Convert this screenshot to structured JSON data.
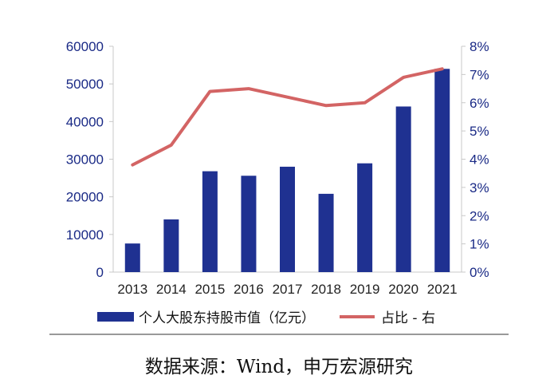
{
  "chart_data": {
    "type": "bar+line",
    "categories": [
      "2013",
      "2014",
      "2015",
      "2016",
      "2017",
      "2018",
      "2019",
      "2020",
      "2021"
    ],
    "series": [
      {
        "name": "个人大股东持股市值（亿元）",
        "type": "bar",
        "axis": "left",
        "color": "#1f3191",
        "values": [
          7600,
          14000,
          26800,
          25600,
          28000,
          20800,
          28900,
          44000,
          54000
        ]
      },
      {
        "name": "占比 - 右",
        "type": "line",
        "axis": "right",
        "color": "#d36464",
        "values": [
          3.8,
          4.5,
          6.4,
          6.5,
          6.2,
          5.9,
          6.0,
          6.9,
          7.2
        ]
      }
    ],
    "y_left": {
      "min": 0,
      "max": 60000,
      "ticks": [
        "0",
        "10000",
        "20000",
        "30000",
        "40000",
        "50000",
        "60000"
      ]
    },
    "y_right": {
      "min": 0,
      "max": 8,
      "ticks": [
        "0%",
        "1%",
        "2%",
        "3%",
        "4%",
        "5%",
        "6%",
        "7%",
        "8%"
      ]
    },
    "legend_position": "bottom",
    "grid": false
  },
  "legend": {
    "bar_label": "个人大股东持股市值（亿元）",
    "line_label": "占比 - 右"
  },
  "footer": {
    "source": "数据来源：Wind，申万宏源研究"
  }
}
